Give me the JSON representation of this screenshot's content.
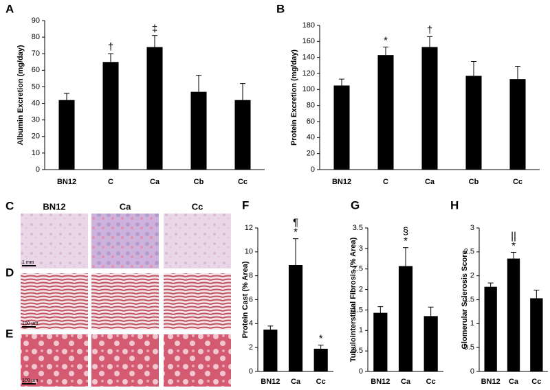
{
  "chart_data": [
    {
      "type": "bar",
      "panel": "A",
      "y_label": "Albumin Excretion (mg/day)",
      "categories": [
        "BN12",
        "C",
        "Ca",
        "Cb",
        "Cc"
      ],
      "values": [
        42,
        65,
        74,
        47,
        42
      ],
      "errors": [
        4,
        5,
        7,
        10,
        10
      ],
      "annotations": [
        null,
        [
          "†"
        ],
        [
          "‡"
        ],
        null,
        null
      ],
      "color": "#000000",
      "ylim": [
        0,
        90
      ],
      "yticks": [
        0,
        10,
        20,
        30,
        40,
        50,
        60,
        70,
        80,
        90
      ]
    },
    {
      "type": "bar",
      "panel": "B",
      "y_label": "Protein Excretion (mg/day)",
      "categories": [
        "BN12",
        "C",
        "Ca",
        "Cb",
        "Cc"
      ],
      "values": [
        105,
        143,
        153,
        117,
        113
      ],
      "errors": [
        8,
        10,
        13,
        18,
        16
      ],
      "annotations": [
        null,
        [
          "*"
        ],
        [
          "†"
        ],
        null,
        null
      ],
      "color": "#000000",
      "ylim": [
        0,
        180
      ],
      "yticks": [
        0,
        20,
        40,
        60,
        80,
        100,
        120,
        140,
        160,
        180
      ]
    },
    {
      "type": "bar",
      "panel": "F",
      "y_label": "Protein Cast (% Area)",
      "categories": [
        "BN12",
        "Ca",
        "Cc"
      ],
      "values": [
        3.5,
        8.9,
        1.9
      ],
      "errors": [
        0.3,
        2.2,
        0.3
      ],
      "annotations": [
        null,
        [
          "¶",
          "*"
        ],
        [
          "*"
        ]
      ],
      "color": "#000000",
      "ylim": [
        0,
        12
      ],
      "yticks": [
        0,
        2,
        4,
        6,
        8,
        10,
        12
      ]
    },
    {
      "type": "bar",
      "panel": "G",
      "y_label": "Tubulointerstitial Fibrosis (% Area)",
      "categories": [
        "BN12",
        "Ca",
        "Cc"
      ],
      "values": [
        1.43,
        2.57,
        1.35
      ],
      "errors": [
        0.15,
        0.45,
        0.22
      ],
      "annotations": [
        null,
        [
          "§",
          "*"
        ],
        null
      ],
      "color": "#000000",
      "ylim": [
        0,
        3.5
      ],
      "yticks": [
        0,
        0.5,
        1,
        1.5,
        2,
        2.5,
        3,
        3.5
      ]
    },
    {
      "type": "bar",
      "panel": "H",
      "y_label": "Glomerular Sclerosis Score",
      "categories": [
        "BN12",
        "Ca",
        "Cc"
      ],
      "values": [
        1.77,
        2.36,
        1.53
      ],
      "errors": [
        0.08,
        0.13,
        0.17
      ],
      "annotations": [
        null,
        [
          "||",
          "*"
        ],
        null
      ],
      "color": "#000000",
      "ylim": [
        0,
        3
      ],
      "yticks": [
        0,
        0.5,
        1,
        1.5,
        2,
        2.5,
        3
      ]
    }
  ],
  "histology": {
    "rows": [
      "C",
      "D",
      "E"
    ],
    "columns": [
      "BN12",
      "Ca",
      "Cc"
    ],
    "scale_bars": [
      "1 mm",
      "100 µm",
      "100 µm"
    ]
  }
}
